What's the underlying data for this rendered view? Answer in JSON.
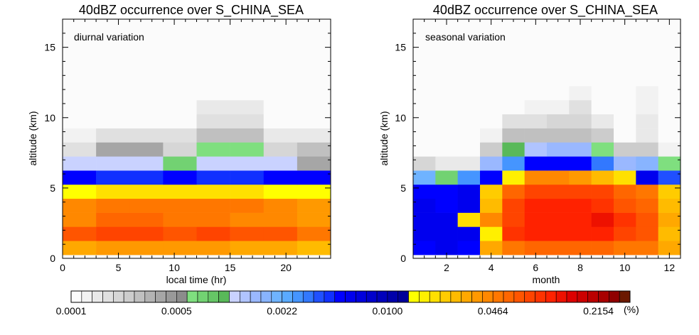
{
  "chart_data": [
    {
      "type": "heatmap",
      "title": "40dBZ occurrence over S_CHINA_SEA",
      "annotation": "diurnal variation",
      "xlabel": "local time (hr)",
      "ylabel": "altitude (km)",
      "xlim": [
        0,
        24
      ],
      "ylim": [
        0,
        17
      ],
      "xticks": [
        0,
        5,
        10,
        15,
        20
      ],
      "yticks": [
        0,
        5,
        10,
        15
      ],
      "x_edges": [
        0,
        3,
        6,
        9,
        12,
        15,
        18,
        21,
        24
      ],
      "y_edges": [
        0.25,
        1.25,
        2.25,
        3.25,
        4.25,
        5.25,
        6.25,
        7.25,
        8.25,
        9.25,
        10.25,
        11.25,
        12.25,
        13.25,
        14.25,
        15.25,
        16.25,
        17
      ],
      "grid": false,
      "z_color_index": [
        [
          37,
          38,
          38,
          38,
          38,
          37,
          37,
          36
        ],
        [
          42,
          43,
          43,
          42,
          43,
          42,
          42,
          40
        ],
        [
          39,
          41,
          41,
          40,
          40,
          39,
          39,
          38
        ],
        [
          39,
          40,
          40,
          40,
          40,
          40,
          39,
          38
        ],
        [
          32,
          34,
          34,
          34,
          34,
          34,
          32,
          32
        ],
        [
          25,
          24,
          24,
          25,
          24,
          24,
          25,
          25
        ],
        [
          15,
          15,
          15,
          12,
          15,
          15,
          15,
          8
        ],
        [
          3,
          8,
          8,
          4,
          11,
          11,
          4,
          6
        ],
        [
          1,
          3,
          3,
          3,
          6,
          6,
          2,
          2
        ],
        [
          0,
          0,
          0,
          0,
          3,
          3,
          0,
          0
        ],
        [
          0,
          0,
          0,
          0,
          2,
          2,
          0,
          0
        ],
        [
          0,
          0,
          0,
          0,
          0,
          0,
          0,
          0
        ],
        [
          0,
          0,
          0,
          0,
          0,
          0,
          0,
          0
        ],
        [
          0,
          0,
          0,
          0,
          0,
          0,
          0,
          0
        ],
        [
          0,
          0,
          0,
          0,
          0,
          0,
          0,
          0
        ],
        [
          0,
          0,
          0,
          0,
          0,
          0,
          0,
          0
        ],
        [
          0,
          0,
          0,
          0,
          0,
          0,
          0,
          0
        ]
      ]
    },
    {
      "type": "heatmap",
      "title": "40dBZ occurrence over S_CHINA_SEA",
      "annotation": "seasonal variation",
      "xlabel": "month",
      "ylabel": "altitude (km)",
      "xlim": [
        0.5,
        12.5
      ],
      "ylim": [
        0,
        17
      ],
      "xticks": [
        2,
        4,
        6,
        8,
        10,
        12
      ],
      "yticks": [
        0,
        5,
        10,
        15
      ],
      "x_edges": [
        0.5,
        1.5,
        2.5,
        3.5,
        4.5,
        5.5,
        6.5,
        7.5,
        8.5,
        9.5,
        10.5,
        11.5,
        12.5
      ],
      "y_edges": [
        0.25,
        1.25,
        2.25,
        3.25,
        4.25,
        5.25,
        6.25,
        7.25,
        8.25,
        9.25,
        10.25,
        11.25,
        12.25,
        13.25,
        14.25,
        15.25,
        16.25,
        17
      ],
      "grid": false,
      "z_color_index": [
        [
          25,
          26,
          25,
          37,
          40,
          41,
          41,
          41,
          41,
          40,
          40,
          37
        ],
        [
          26,
          26,
          26,
          33,
          44,
          45,
          45,
          45,
          45,
          43,
          42,
          36
        ],
        [
          26,
          26,
          34,
          39,
          43,
          45,
          45,
          45,
          46,
          44,
          42,
          37
        ],
        [
          26,
          25,
          26,
          36,
          43,
          45,
          45,
          45,
          44,
          42,
          41,
          36
        ],
        [
          25,
          25,
          26,
          35,
          41,
          43,
          43,
          43,
          43,
          41,
          40,
          35
        ],
        [
          19,
          12,
          21,
          25,
          33,
          39,
          39,
          38,
          36,
          34,
          26,
          23
        ],
        [
          4,
          2,
          2,
          17,
          21,
          25,
          25,
          25,
          22,
          17,
          18,
          11
        ],
        [
          0,
          0,
          0,
          5,
          14,
          16,
          17,
          17,
          11,
          5,
          5,
          1
        ],
        [
          0,
          0,
          0,
          1,
          6,
          6,
          6,
          6,
          5,
          0,
          2,
          0
        ],
        [
          0,
          0,
          0,
          0,
          3,
          3,
          4,
          4,
          2,
          0,
          2,
          0
        ],
        [
          0,
          0,
          0,
          0,
          0,
          1,
          1,
          3,
          0,
          0,
          1,
          0
        ],
        [
          0,
          0,
          0,
          0,
          0,
          0,
          0,
          1,
          0,
          0,
          1,
          0
        ],
        [
          0,
          0,
          0,
          0,
          0,
          0,
          0,
          0,
          0,
          0,
          0,
          0
        ],
        [
          0,
          0,
          0,
          0,
          0,
          0,
          0,
          0,
          0,
          0,
          0,
          0
        ],
        [
          0,
          0,
          0,
          0,
          0,
          0,
          0,
          0,
          0,
          0,
          0,
          0
        ],
        [
          0,
          0,
          0,
          0,
          0,
          0,
          0,
          0,
          0,
          0,
          0,
          0
        ],
        [
          0,
          0,
          0,
          0,
          0,
          0,
          0,
          0,
          0,
          0,
          0,
          0
        ]
      ]
    }
  ],
  "colorbar": {
    "unit": "(%)",
    "labels": [
      "0.0001",
      "0.0005",
      "0.0022",
      "0.0100",
      "0.0464",
      "0.2154"
    ],
    "label_bins": [
      0,
      10,
      20,
      30,
      40,
      50
    ],
    "colors": [
      "#fbfbfb",
      "#f2f2f2",
      "#e9e9e9",
      "#e0e0e0",
      "#d6d6d6",
      "#cccccc",
      "#c0c0c0",
      "#b3b3b3",
      "#a6a6a6",
      "#999999",
      "#8c8c8c",
      "#7fdf7f",
      "#72d272",
      "#66c666",
      "#59b959",
      "#c9d2ff",
      "#b0c4ff",
      "#9ab8ff",
      "#88b4ff",
      "#6fb3ff",
      "#5aaaff",
      "#4595ff",
      "#3278ff",
      "#2050ff",
      "#1030ff",
      "#0000ff",
      "#0000ee",
      "#0000dd",
      "#0000cc",
      "#0000bb",
      "#0000aa",
      "#000099",
      "#ffff00",
      "#fff000",
      "#ffe000",
      "#ffcc00",
      "#ffbb00",
      "#ffa800",
      "#ff9900",
      "#ff8800",
      "#ff7700",
      "#ff6600",
      "#ff5500",
      "#ff4400",
      "#ff3300",
      "#ff2200",
      "#ee1100",
      "#dd0000",
      "#cc0000",
      "#bb0000",
      "#a80000",
      "#900000",
      "#6b1800"
    ]
  }
}
